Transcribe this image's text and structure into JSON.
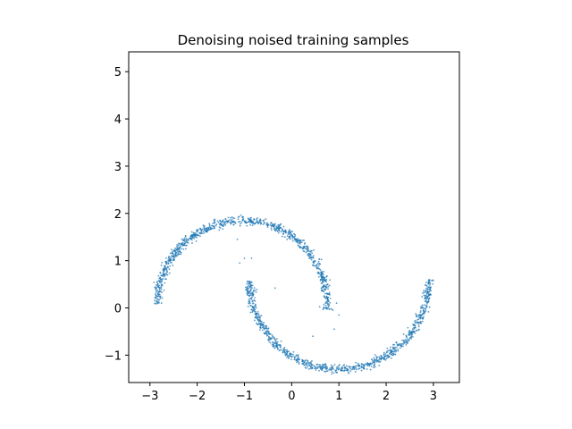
{
  "chart_data": {
    "type": "scatter",
    "title": "Denoising noised training samples",
    "xlabel": "",
    "ylabel": "",
    "xlim": [
      -3.45,
      3.55
    ],
    "ylim": [
      -1.58,
      5.42
    ],
    "xticks": [
      -3,
      -2,
      -1,
      0,
      1,
      2,
      3
    ],
    "yticks": [
      -1,
      0,
      1,
      2,
      3,
      4,
      5
    ],
    "grid": false,
    "color": "#1f77b4",
    "series": [
      {
        "shape": "upper-moon",
        "center": [
          -1.05,
          0.05
        ],
        "radius": 1.8,
        "arc_degrees": [
          -3,
          179
        ],
        "approx_points": 900
      },
      {
        "shape": "lower-moon",
        "center": [
          1.0,
          0.6
        ],
        "radius": 1.9,
        "arc_degrees": [
          181,
          360
        ],
        "approx_points": 900
      }
    ],
    "outliers": [
      [
        -1.15,
        1.45
      ],
      [
        -1.0,
        1.05
      ],
      [
        -0.85,
        1.05
      ],
      [
        -0.35,
        0.42
      ],
      [
        0.45,
        -0.6
      ],
      [
        0.9,
        -0.45
      ],
      [
        1.0,
        -0.15
      ],
      [
        -1.1,
        0.95
      ],
      [
        0.95,
        0.1
      ]
    ]
  }
}
